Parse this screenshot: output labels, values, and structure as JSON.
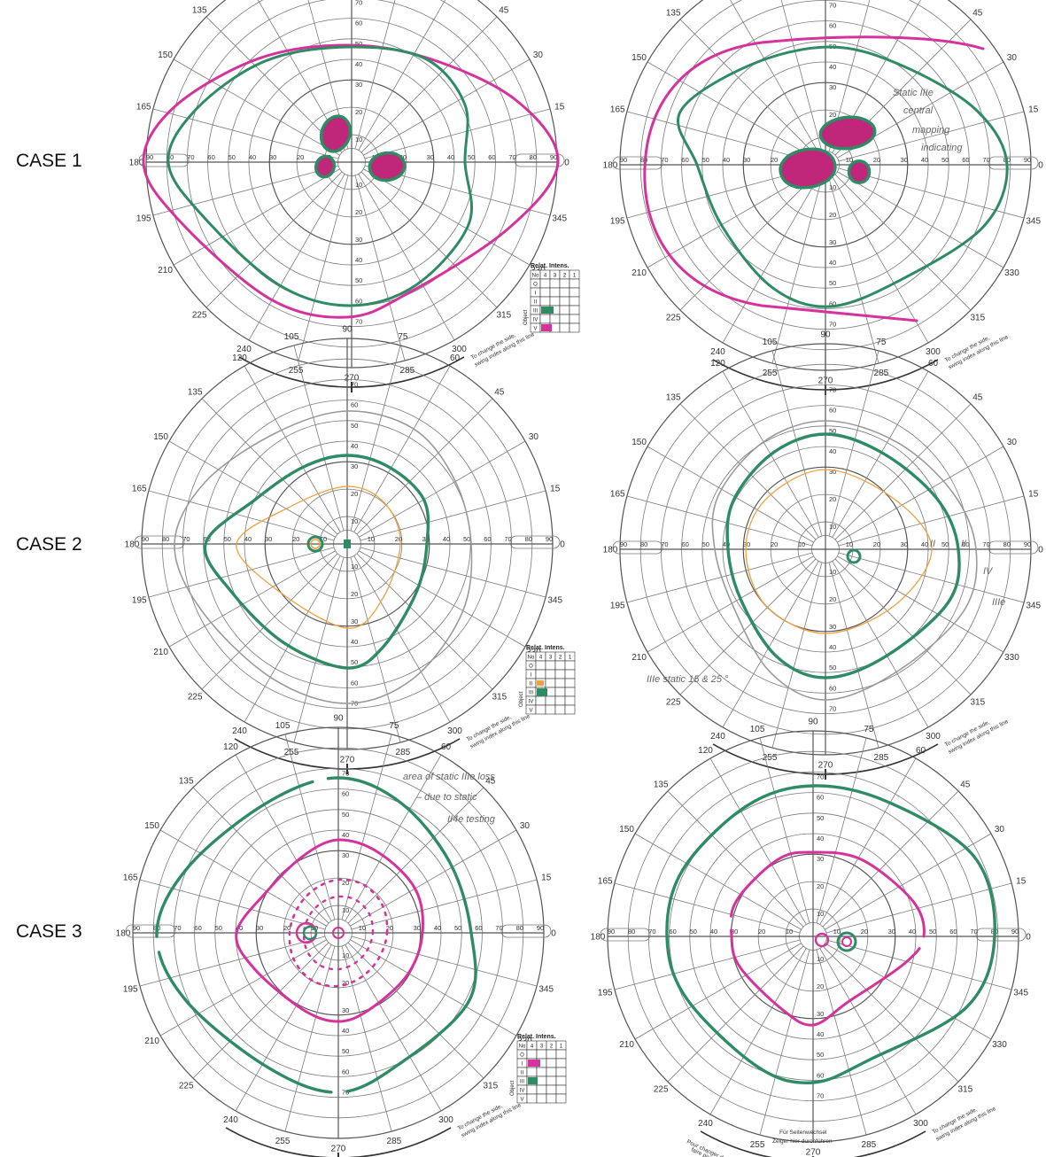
{
  "case_labels": [
    "CASE 1",
    "CASE 2",
    "CASE 3"
  ],
  "colors": {
    "grid": "#7a7a7a",
    "magenta": "#d4339b",
    "green": "#2e8b64",
    "orange": "#f0a040",
    "gray_isopter": "#9a9a9a",
    "text": "#333333"
  },
  "angle_labels": [
    "0",
    "15",
    "30",
    "45",
    "60",
    "75",
    "90",
    "105",
    "120",
    "135",
    "150",
    "165",
    "180",
    "195",
    "210",
    "225",
    "240",
    "255",
    "270",
    "285",
    "300",
    "315",
    "330",
    "345"
  ],
  "ecc_labels": [
    "10",
    "20",
    "30",
    "40",
    "50",
    "60",
    "70",
    "80",
    "90"
  ],
  "legend": {
    "title": "Relat. Intens.",
    "side_label": "Object",
    "col_headers": [
      "No",
      "4",
      "3",
      "2",
      "1"
    ],
    "row_labels": [
      "O",
      "I",
      "II",
      "III",
      "IV",
      "V"
    ]
  },
  "swing_text": [
    "To change the side,",
    "swing index along this line"
  ],
  "swing_text_multilang": {
    "fr": [
      "Pour changer de côté,",
      "faire pivoter l'index par ici"
    ],
    "de": [
      "Für Seitenwechsel",
      "Zeiger hier durchführen"
    ]
  },
  "annotations": {
    "c1_right": [
      "Static IIIe",
      "central",
      "mapping",
      "indicating"
    ],
    "c2_right_bottom": "IIIe static 15 & 25 °",
    "c2_right_marks": [
      "II",
      "II",
      "IV",
      "IIIe"
    ],
    "c3_left": [
      "area of static IIIe loss",
      "– due to static",
      "II4e testing"
    ]
  },
  "diagrams": [
    {
      "id": "c1-left",
      "legend": true
    },
    {
      "id": "c1-right",
      "legend": false
    },
    {
      "id": "c2-left",
      "legend": true
    },
    {
      "id": "c2-right",
      "legend": false
    },
    {
      "id": "c3-left",
      "legend": true
    },
    {
      "id": "c3-right",
      "legend": false
    }
  ]
}
